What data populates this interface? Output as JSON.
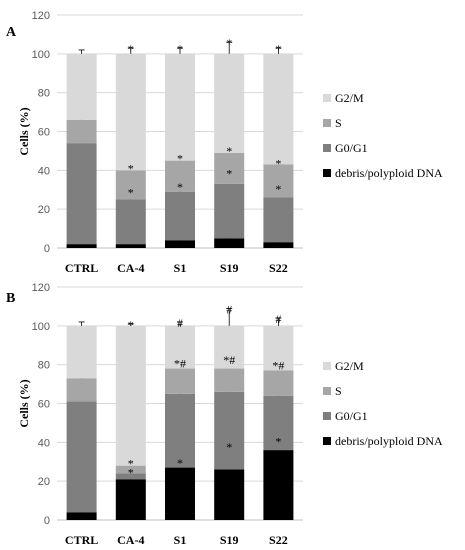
{
  "colors": {
    "G2/M": "#d9d9d9",
    "S": "#a6a6a6",
    "G0/G1": "#7f7f7f",
    "debris/polyploid DNA": "#000000",
    "grid": "#d9d9d9",
    "axis": "#bfbfbf"
  },
  "chart_data": [
    {
      "type": "bar",
      "stacked": true,
      "panel": "A",
      "categories": [
        "CTRL",
        "CA-4",
        "S1",
        "S19",
        "S22"
      ],
      "ylabel": "Cells (%)",
      "ylim": [
        0,
        120
      ],
      "yticks": [
        0,
        20,
        40,
        60,
        80,
        100,
        120
      ],
      "grid": true,
      "legend": "right",
      "legend_order": [
        "G2/M",
        "S",
        "G0/G1",
        "debris/polyploid DNA"
      ],
      "series": [
        {
          "name": "debris/polyploid DNA",
          "values": [
            2,
            2,
            4,
            5,
            3
          ],
          "errors": [
            0.5,
            0.5,
            1,
            1.5,
            0.8
          ]
        },
        {
          "name": "G0/G1",
          "values": [
            52,
            23,
            25,
            28,
            23
          ],
          "errors": [
            3,
            4,
            3,
            6,
            5
          ]
        },
        {
          "name": "S",
          "values": [
            12,
            15,
            16,
            16,
            17
          ],
          "errors": [
            1.5,
            1.5,
            1.5,
            1.5,
            1
          ]
        },
        {
          "name": "G2/M",
          "values": [
            34,
            60,
            55,
            51,
            57
          ],
          "errors": [
            2,
            3,
            3,
            6,
            3
          ]
        }
      ],
      "annotations": [
        {
          "category": "CA-4",
          "series": "G2/M",
          "text": "*"
        },
        {
          "category": "S1",
          "series": "G2/M",
          "text": "*"
        },
        {
          "category": "S19",
          "series": "G2/M",
          "text": "*"
        },
        {
          "category": "S22",
          "series": "G2/M",
          "text": "*"
        },
        {
          "category": "CA-4",
          "series": "S",
          "text": "*"
        },
        {
          "category": "S1",
          "series": "S",
          "text": "*"
        },
        {
          "category": "S19",
          "series": "S",
          "text": "*"
        },
        {
          "category": "S22",
          "series": "S",
          "text": "*"
        },
        {
          "category": "CA-4",
          "series": "G0/G1",
          "text": "*"
        },
        {
          "category": "S1",
          "series": "G0/G1",
          "text": "*"
        },
        {
          "category": "S19",
          "series": "G0/G1",
          "text": "*"
        },
        {
          "category": "S22",
          "series": "G0/G1",
          "text": "*"
        }
      ]
    },
    {
      "type": "bar",
      "stacked": true,
      "panel": "B",
      "categories": [
        "CTRL",
        "CA-4",
        "S1",
        "S19",
        "S22"
      ],
      "ylabel": "Cells (%)",
      "ylim": [
        0,
        120
      ],
      "yticks": [
        0,
        20,
        40,
        60,
        80,
        100,
        120
      ],
      "grid": true,
      "legend": "right",
      "legend_order": [
        "G2/M",
        "S",
        "G0/G1",
        "debris/polyploid DNA"
      ],
      "series": [
        {
          "name": "debris/polyploid DNA",
          "values": [
            4,
            21,
            27,
            26,
            36
          ],
          "errors": [
            1,
            1,
            3,
            12,
            5
          ]
        },
        {
          "name": "G0/G1",
          "values": [
            57,
            3,
            38,
            40,
            28
          ],
          "errors": [
            2,
            1,
            4,
            6,
            5
          ]
        },
        {
          "name": "S",
          "values": [
            12,
            4,
            13,
            12,
            13
          ],
          "errors": [
            3,
            1.5,
            3,
            5,
            3
          ]
        },
        {
          "name": "G2/M",
          "values": [
            27,
            72,
            22,
            22,
            23
          ],
          "errors": [
            2,
            1,
            2,
            9,
            4
          ]
        }
      ],
      "annotations": [
        {
          "category": "CA-4",
          "series": "G2/M",
          "text": "*"
        },
        {
          "category": "S1",
          "series": "G2/M",
          "text": "#"
        },
        {
          "category": "S19",
          "series": "G2/M",
          "text": "#"
        },
        {
          "category": "S22",
          "series": "G2/M",
          "text": "#"
        },
        {
          "category": "CA-4",
          "series": "S",
          "text": "*"
        },
        {
          "category": "S1",
          "series": "S",
          "text": "*#"
        },
        {
          "category": "S19",
          "series": "S",
          "text": "*#"
        },
        {
          "category": "S22",
          "series": "S",
          "text": "*#"
        },
        {
          "category": "CA-4",
          "series": "G0/G1",
          "text": "*"
        },
        {
          "category": "S1",
          "series": "debris/polyploid DNA",
          "text": "*"
        },
        {
          "category": "S19",
          "series": "debris/polyploid DNA",
          "text": "*"
        },
        {
          "category": "S22",
          "series": "debris/polyploid DNA",
          "text": "*"
        }
      ]
    }
  ]
}
